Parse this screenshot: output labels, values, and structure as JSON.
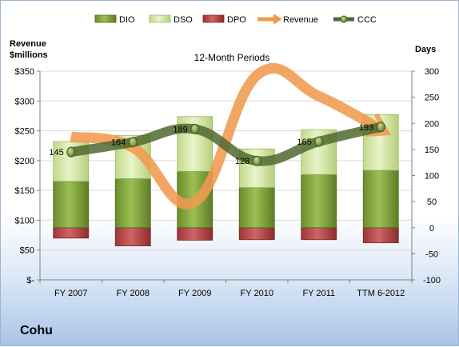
{
  "company": "Cohu",
  "chart_data": {
    "type": "bar",
    "title": "12-Month Periods",
    "categories": [
      "FY 2007",
      "FY 2008",
      "FY 2009",
      "FY 2010",
      "FY 2011",
      "TTM 6-2012"
    ],
    "y_left": {
      "label_lines": [
        "Revenue",
        "$millions"
      ],
      "range": [
        0,
        350
      ],
      "ticks": [
        0,
        50,
        100,
        150,
        200,
        250,
        300,
        350
      ],
      "tick_labels": [
        "$-",
        "$50",
        "$100",
        "$150",
        "$200",
        "$250",
        "$300",
        "$350"
      ]
    },
    "y_right": {
      "label": "Days",
      "range": [
        -100,
        300
      ],
      "ticks": [
        -100,
        -50,
        0,
        50,
        100,
        150,
        200,
        250,
        300
      ],
      "tick_labels": [
        "-100",
        "-50",
        "0",
        "50",
        "100",
        "150",
        "200",
        "250",
        "300"
      ]
    },
    "series": [
      {
        "name": "DIO",
        "type": "stacked-bar",
        "axis": "right",
        "color": "#7d9e3a",
        "values": [
          89,
          94,
          108,
          77,
          102,
          110
        ]
      },
      {
        "name": "DSO",
        "type": "stacked-bar",
        "axis": "right",
        "color": "#d4e6a6",
        "values": [
          76,
          83,
          105,
          74,
          86,
          107
        ]
      },
      {
        "name": "DPO",
        "type": "stacked-bar-negative",
        "axis": "right",
        "color": "#b94a4a",
        "values": [
          -20,
          -35,
          -24,
          -23,
          -23,
          -29
        ]
      },
      {
        "name": "Revenue",
        "type": "smooth-line",
        "axis": "left",
        "color": "#f09a4f",
        "values": [
          240,
          222,
          131,
          343,
          308,
          252
        ]
      },
      {
        "name": "CCC",
        "type": "smooth-line",
        "axis": "right",
        "color": "#4f6a2f",
        "values": [
          145,
          164,
          189,
          128,
          165,
          193
        ]
      }
    ],
    "data_labels": [
      "145",
      "164",
      "189",
      "128",
      "165",
      "193"
    ],
    "legend_position": "top",
    "grid": "horizontal"
  }
}
